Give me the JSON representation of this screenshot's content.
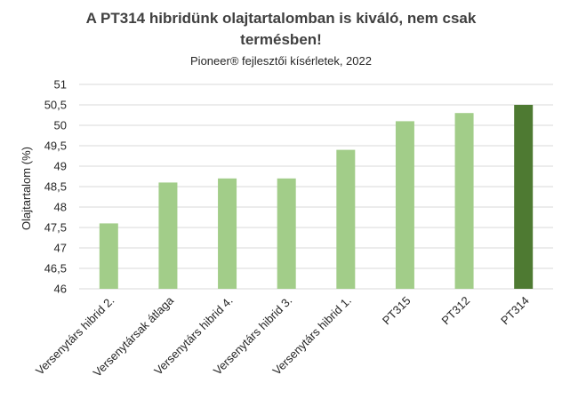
{
  "chart_data": {
    "type": "bar",
    "title_line1": "A PT314 hibridünk olajtartalomban is kiváló, nem csak",
    "title_line2": "termésben!",
    "subtitle": "Pioneer® fejlesztői kísérletek, 2022",
    "xlabel": "",
    "ylabel": "Olajtartalom (%)",
    "ylim": [
      46,
      51
    ],
    "yticks": [
      "46",
      "46,5",
      "47",
      "47,5",
      "48",
      "48,5",
      "49",
      "49,5",
      "50",
      "50,5",
      "51"
    ],
    "categories": [
      "Versenytárs hibrid 2.",
      "Versenytársak átlaga",
      "Versenytárs hibrid 4.",
      "Versenytárs hibrid 3.",
      "Versenytárs hibrid 1.",
      "PT315",
      "PT312",
      "PT314"
    ],
    "values": [
      47.6,
      48.6,
      48.7,
      48.7,
      49.4,
      50.1,
      50.3,
      50.5
    ],
    "grid": true,
    "colors": {
      "default_bar": "#a2cd89",
      "highlight_bar": "#4e7a32",
      "gridline": "#d9d9d9"
    },
    "highlight_index": 7
  }
}
